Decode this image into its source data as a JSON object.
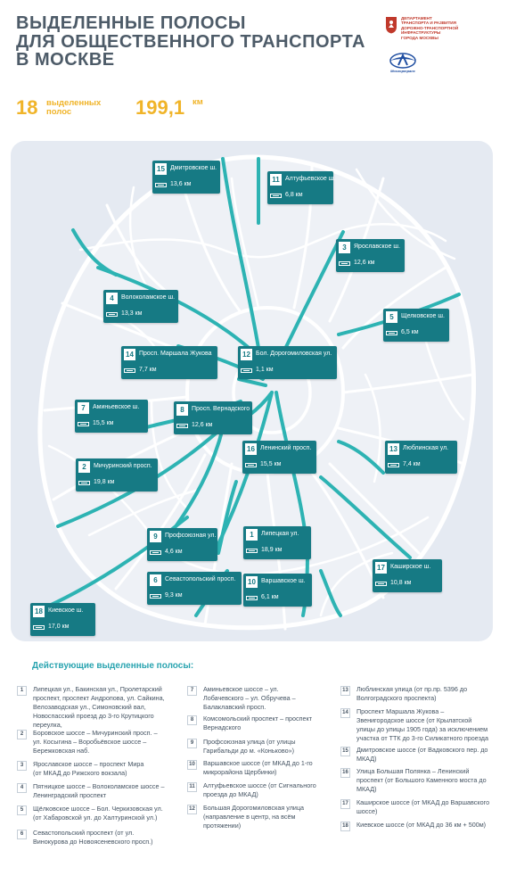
{
  "header": {
    "title_lines": [
      "Выделенные полосы",
      "для общественного транспорта",
      "в Москве"
    ]
  },
  "department": {
    "lines": [
      "Департамент",
      "транспорта и развития",
      "дорожно-транспортной",
      "инфраструктуры",
      "города Москвы"
    ],
    "mosgortrans": "Мосгортранс"
  },
  "stats": {
    "lanes_count": "18",
    "lanes_label_1": "выделенных",
    "lanes_label_2": "полос",
    "total_length": "199,1",
    "total_unit": "км"
  },
  "map_labels": [
    {
      "num": "15",
      "name": [
        "Дмитровское ш."
      ],
      "dist": "13,6 км"
    },
    {
      "num": "11",
      "name": [
        "Алтуфьевское ш."
      ],
      "dist": "6,8 км"
    },
    {
      "num": "3",
      "name": [
        "Ярославское ш."
      ],
      "dist": "12,6 км"
    },
    {
      "num": "4",
      "name": [
        "Волоколамское ш."
      ],
      "dist": "13,3 км"
    },
    {
      "num": "5",
      "name": [
        "Щелковское ш."
      ],
      "dist": "6,5 км"
    },
    {
      "num": "14",
      "name": [
        "Просп. Маршала Жукова"
      ],
      "dist": "7,7 км"
    },
    {
      "num": "12",
      "name": [
        "Бол. Дорогомиловская ул."
      ],
      "dist": "1,1 км"
    },
    {
      "num": "7",
      "name": [
        "Аминьевское ш."
      ],
      "dist": "15,5 км"
    },
    {
      "num": "8",
      "name": [
        "Просп. Вернадского"
      ],
      "dist": "12,6 км"
    },
    {
      "num": "16",
      "name": [
        "Ленинский просп."
      ],
      "dist": "15,5 км"
    },
    {
      "num": "13",
      "name": [
        "Люблинская ул."
      ],
      "dist": "7,4 км"
    },
    {
      "num": "2",
      "name": [
        "Мичуринский просп."
      ],
      "dist": "19,8 км"
    },
    {
      "num": "9",
      "name": [
        "Профсоюзная ул."
      ],
      "dist": "4,6 км"
    },
    {
      "num": "1",
      "name": [
        "Липецкая ул."
      ],
      "dist": "18,9 км"
    },
    {
      "num": "17",
      "name": [
        "Каширское ш."
      ],
      "dist": "10,8 км"
    },
    {
      "num": "6",
      "name": [
        "Севастопольский просп."
      ],
      "dist": "9,3 км"
    },
    {
      "num": "10",
      "name": [
        "Варшавское ш."
      ],
      "dist": "6,1 км"
    },
    {
      "num": "18",
      "name": [
        "Киевское ш."
      ],
      "dist": "17,0 км"
    }
  ],
  "legend": {
    "title": "Действующие выделенные полосы:",
    "items": [
      {
        "num": "1",
        "lines": [
          "Липецкая ул., Бакинская ул., Пролетарский",
          "проспект, проспект Андропова, ул. Сайкина,",
          "Велозаводская ул., Симоновский вал,",
          "Новоспасский проезд до 3-го Крутицкого",
          "переулка,"
        ]
      },
      {
        "num": "2",
        "lines": [
          "Боровское шоссе – Мичуринский просп. –",
          "ул. Косыгина – Воробьёвское шоссе –",
          "Бережковская наб."
        ]
      },
      {
        "num": "3",
        "lines": [
          "Ярославское шоссе – проспект Мира",
          "(от МКАД до Рижского вокзала)"
        ]
      },
      {
        "num": "4",
        "lines": [
          "Пятницкое шоссе – Волоколамское шоссе –",
          "Ленинградский проспект"
        ]
      },
      {
        "num": "5",
        "lines": [
          "Щёлковское шоссе – Бол. Черкизовская ул.",
          "(от Хабаровской ул. до Халтуринской ул.)"
        ]
      },
      {
        "num": "6",
        "lines": [
          "Севастопольский проспект (от ул.",
          "Винокурова до Новоясеневского просп.)"
        ]
      },
      {
        "num": "7",
        "lines": [
          "Аминьевское шоссе – ул.",
          "Лобачевского – ул. Обручева –",
          "Балаклавский просп."
        ]
      },
      {
        "num": "8",
        "lines": [
          "Комсомольский проспект – проспект",
          "Вернадского"
        ]
      },
      {
        "num": "9",
        "lines": [
          "Профсоюзная улица (от улицы",
          "Гарибальди до м. «Коньково»)"
        ]
      },
      {
        "num": "10",
        "lines": [
          "Варшавское шоссе (от МКАД до 1-го",
          "микрорайона Щербинки)"
        ]
      },
      {
        "num": "11",
        "lines": [
          "Алтуфьевское шоссе (от Сигнального",
          "проезда до МКАД)"
        ]
      },
      {
        "num": "12",
        "lines": [
          "Большая Дорогомиловская улица",
          "(направление в центр, на всём",
          "протяжении)"
        ]
      },
      {
        "num": "13",
        "lines": [
          "Люблинская улица (от пр.пр. 5396 до",
          "Волгоградского проспекта)"
        ]
      },
      {
        "num": "14",
        "lines": [
          "Проспект Маршала Жукова –",
          "Звенигородское шоссе (от Крылатской",
          "улицы до улицы 1905 года) за исключением",
          "участка от ТТК до 3-го Силикатного проезда"
        ]
      },
      {
        "num": "15",
        "lines": [
          "Дмитровское шоссе (от Вадковского пер. до",
          "МКАД)"
        ]
      },
      {
        "num": "16",
        "lines": [
          "Улица Большая Полянка – Ленинский",
          "проспект (от Большого Каменного моста до",
          "МКАД)"
        ]
      },
      {
        "num": "17",
        "lines": [
          "Каширское шоссе (от МКАД до Варшавского",
          "шоссе)"
        ]
      },
      {
        "num": "18",
        "lines": [
          "Киевское шоссе (от МКАД до 36 км + 500м)"
        ]
      }
    ]
  },
  "colors": {
    "accent": "#167a84",
    "highlight_lane": "#2db3b3",
    "stat_yellow": "#f0b429",
    "road": "#ffffff",
    "map_background": "#e5eaf2",
    "heading": "#4d5b68"
  }
}
